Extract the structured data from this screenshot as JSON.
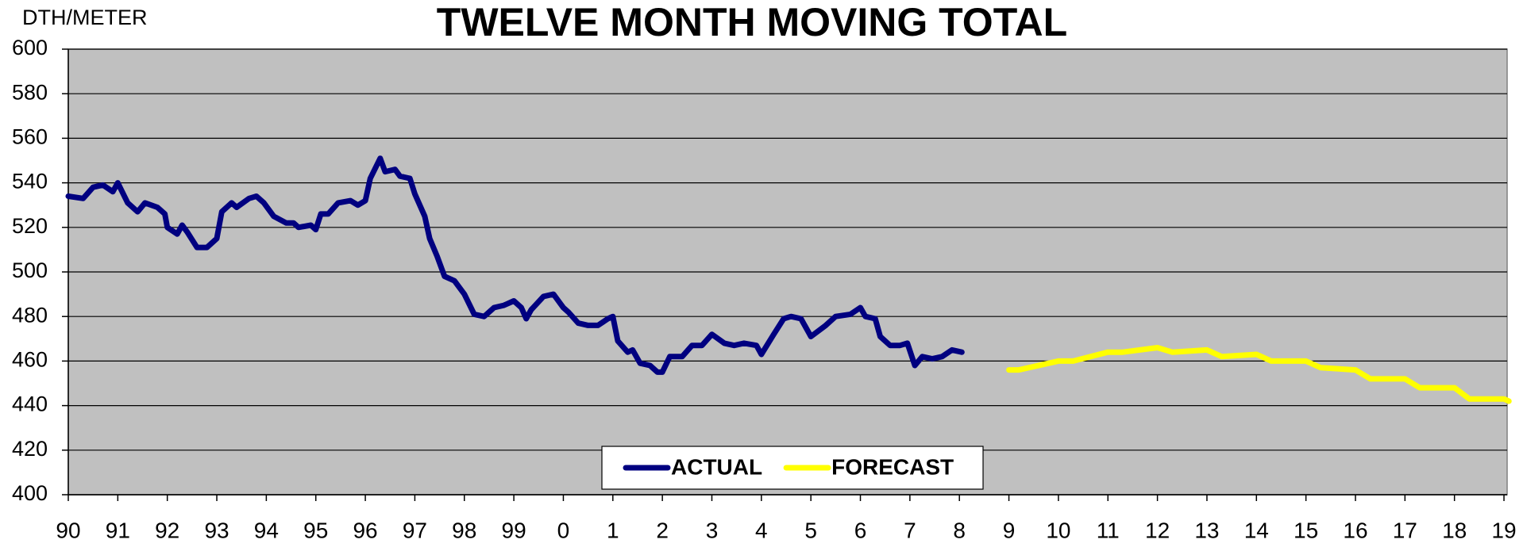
{
  "chart_data": {
    "type": "line",
    "title": "TWELVE MONTH MOVING TOTAL",
    "y_label": "DTH/METER",
    "xlim": [
      1990,
      2019
    ],
    "xticks": [
      {
        "value": 1990,
        "label": "90"
      },
      {
        "value": 1991,
        "label": "91"
      },
      {
        "value": 1992,
        "label": "92"
      },
      {
        "value": 1993,
        "label": "93"
      },
      {
        "value": 1994,
        "label": "94"
      },
      {
        "value": 1995,
        "label": "95"
      },
      {
        "value": 1996,
        "label": "96"
      },
      {
        "value": 1997,
        "label": "97"
      },
      {
        "value": 1998,
        "label": "98"
      },
      {
        "value": 1999,
        "label": "99"
      },
      {
        "value": 2000,
        "label": "0"
      },
      {
        "value": 2001,
        "label": "1"
      },
      {
        "value": 2002,
        "label": "2"
      },
      {
        "value": 2003,
        "label": "3"
      },
      {
        "value": 2004,
        "label": "4"
      },
      {
        "value": 2005,
        "label": "5"
      },
      {
        "value": 2006,
        "label": "6"
      },
      {
        "value": 2007,
        "label": "7"
      },
      {
        "value": 2008,
        "label": "8"
      },
      {
        "value": 2009,
        "label": "9"
      },
      {
        "value": 2010,
        "label": "10"
      },
      {
        "value": 2011,
        "label": "11"
      },
      {
        "value": 2012,
        "label": "12"
      },
      {
        "value": 2013,
        "label": "13"
      },
      {
        "value": 2014,
        "label": "14"
      },
      {
        "value": 2015,
        "label": "15"
      },
      {
        "value": 2016,
        "label": "16"
      },
      {
        "value": 2017,
        "label": "17"
      },
      {
        "value": 2018,
        "label": "18"
      },
      {
        "value": 2019,
        "label": "19"
      }
    ],
    "ylim": [
      400,
      600
    ],
    "yticks": [
      400,
      420,
      440,
      460,
      480,
      500,
      520,
      540,
      560,
      580,
      600
    ],
    "grid": true,
    "legend": "bottom",
    "series": [
      {
        "name": "ACTUAL",
        "color": "#000080",
        "x": [
          1990.0,
          1990.3,
          1990.5,
          1990.7,
          1990.9,
          1991.0,
          1991.2,
          1991.4,
          1991.55,
          1991.8,
          1991.95,
          1992.0,
          1992.2,
          1992.3,
          1992.4,
          1992.6,
          1992.8,
          1993.0,
          1993.1,
          1993.3,
          1993.4,
          1993.65,
          1993.8,
          1993.95,
          1994.15,
          1994.4,
          1994.55,
          1994.65,
          1994.9,
          1995.0,
          1995.1,
          1995.25,
          1995.45,
          1995.7,
          1995.85,
          1996.0,
          1996.1,
          1996.3,
          1996.4,
          1996.6,
          1996.7,
          1996.9,
          1997.0,
          1997.2,
          1997.3,
          1997.45,
          1997.6,
          1997.8,
          1998.0,
          1998.2,
          1998.4,
          1998.6,
          1998.8,
          1999.0,
          1999.15,
          1999.25,
          1999.35,
          1999.6,
          1999.8,
          2000.0,
          2000.1,
          2000.3,
          2000.5,
          2000.7,
          2000.9,
          2001.0,
          2001.1,
          2001.3,
          2001.4,
          2001.55,
          2001.75,
          2001.9,
          2002.0,
          2002.15,
          2002.4,
          2002.6,
          2002.8,
          2003.0,
          2003.25,
          2003.45,
          2003.65,
          2003.9,
          2004.0,
          2004.25,
          2004.45,
          2004.6,
          2004.8,
          2005.0,
          2005.3,
          2005.5,
          2005.8,
          2006.0,
          2006.1,
          2006.3,
          2006.4,
          2006.6,
          2006.8,
          2006.95,
          2007.1,
          2007.25,
          2007.45,
          2007.65,
          2007.85,
          2008.05
        ],
        "values": [
          534,
          533,
          538,
          539,
          536,
          540,
          531,
          527,
          531,
          529,
          526,
          520,
          517,
          521,
          518,
          511,
          511,
          515,
          527,
          531,
          529,
          533,
          534,
          531,
          525,
          522,
          522,
          520,
          521,
          519,
          526,
          526,
          531,
          532,
          530,
          532,
          542,
          551,
          545,
          546,
          543,
          542,
          535,
          525,
          515,
          507,
          498,
          496,
          490,
          481,
          480,
          484,
          485,
          487,
          484,
          479,
          483,
          489,
          490,
          484,
          482,
          477,
          476,
          476,
          479,
          480,
          469,
          464,
          465,
          459,
          458,
          455,
          455,
          462,
          462,
          467,
          467,
          472,
          468,
          467,
          468,
          467,
          463,
          472,
          479,
          480,
          479,
          471,
          476,
          480,
          481,
          484,
          480,
          479,
          471,
          467,
          467,
          468,
          458,
          462,
          461,
          462,
          465,
          464
        ]
      },
      {
        "name": "FORECAST",
        "color": "#ffff00",
        "x": [
          2009.0,
          2009.2,
          2010.0,
          2010.3,
          2011.0,
          2011.3,
          2012.0,
          2012.3,
          2013.0,
          2013.3,
          2014.0,
          2014.3,
          2015.0,
          2015.3,
          2016.0,
          2016.3,
          2017.0,
          2017.3,
          2018.0,
          2018.3,
          2019.0,
          2019.1
        ],
        "values": [
          456,
          456,
          460,
          460,
          464,
          464,
          466,
          464,
          465,
          462,
          463,
          460,
          460,
          457,
          456,
          452,
          452,
          448,
          448,
          443,
          443,
          442
        ]
      }
    ]
  }
}
